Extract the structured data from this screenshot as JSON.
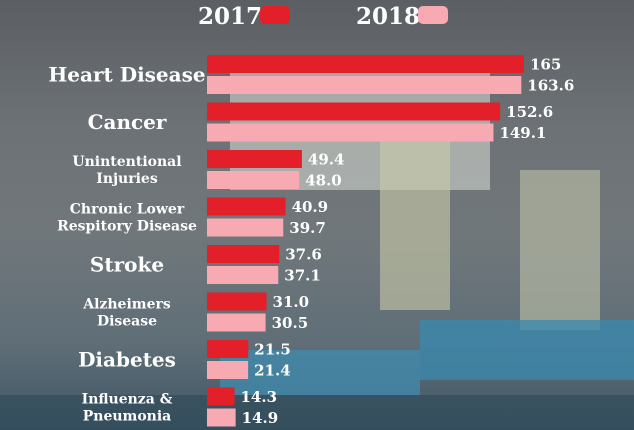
{
  "chart_data": {
    "type": "bar",
    "orientation": "horizontal",
    "categories": [
      [
        "Heart Disease"
      ],
      [
        "Cancer"
      ],
      [
        "Unintentional",
        "Injuries"
      ],
      [
        "Chronic Lower",
        "Respitory Disease"
      ],
      [
        "Stroke"
      ],
      [
        "Alzheimers",
        "Disease"
      ],
      [
        "Diabetes"
      ],
      [
        "Influenza &",
        "Pneumonia"
      ]
    ],
    "series": [
      {
        "name": "2017",
        "color": "#e3202a",
        "values": [
          165,
          152.6,
          49.4,
          40.9,
          37.6,
          31.0,
          21.5,
          14.3
        ],
        "labels": [
          "165",
          "152.6",
          "49.4",
          "40.9",
          "37.6",
          "31.0",
          "21.5",
          "14.3"
        ]
      },
      {
        "name": "2018",
        "color": "#f7aab2",
        "values": [
          163.6,
          149.1,
          48.0,
          39.7,
          37.1,
          30.5,
          21.4,
          14.9
        ],
        "labels": [
          "163.6",
          "149.1",
          "48.0",
          "39.7",
          "37.1",
          "30.5",
          "21.4",
          "14.9"
        ]
      }
    ],
    "legend_position": "top",
    "xlim": [
      0,
      170
    ],
    "grid": false,
    "title": "",
    "xlabel": "",
    "ylabel": ""
  }
}
